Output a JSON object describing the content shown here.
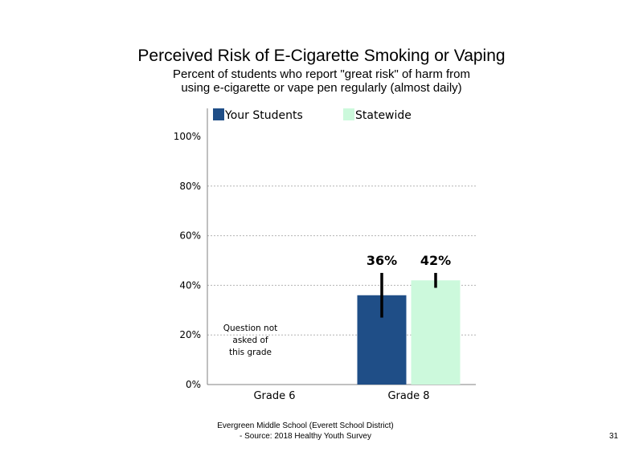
{
  "slide": {
    "title": "Perceived Risk of E-Cigarette Smoking or Vaping",
    "subtitle_line1": "Percent of students who report \"great risk\" of harm from",
    "subtitle_line2": "using e-cigarette or vape pen regularly (almost daily)",
    "footer_line1": "Evergreen Middle School (Everett School District)",
    "footer_line2": "- Source: 2018 Healthy Youth Survey",
    "page_number": "31"
  },
  "chart_data": {
    "type": "bar",
    "categories": [
      "Grade 6",
      "Grade 8"
    ],
    "series": [
      {
        "name": "Your Students",
        "color": "#1f4e87",
        "values": [
          null,
          36
        ],
        "labels": [
          null,
          "36%"
        ],
        "error_low": [
          null,
          27
        ],
        "error_high": [
          null,
          45
        ]
      },
      {
        "name": "Statewide",
        "color": "#ccf9dc",
        "values": [
          null,
          42
        ],
        "labels": [
          null,
          "42%"
        ],
        "error_low": [
          null,
          39
        ],
        "error_high": [
          null,
          45
        ]
      }
    ],
    "ylim": [
      0,
      100
    ],
    "yticks": [
      0,
      20,
      40,
      60,
      80,
      100
    ],
    "ytick_labels": [
      "0%",
      "20%",
      "40%",
      "60%",
      "80%",
      "100%"
    ],
    "grid": true,
    "legend_position": "top",
    "annotations": [
      {
        "category": "Grade 6",
        "lines": [
          "Question not",
          "asked of",
          "this grade"
        ]
      }
    ]
  }
}
